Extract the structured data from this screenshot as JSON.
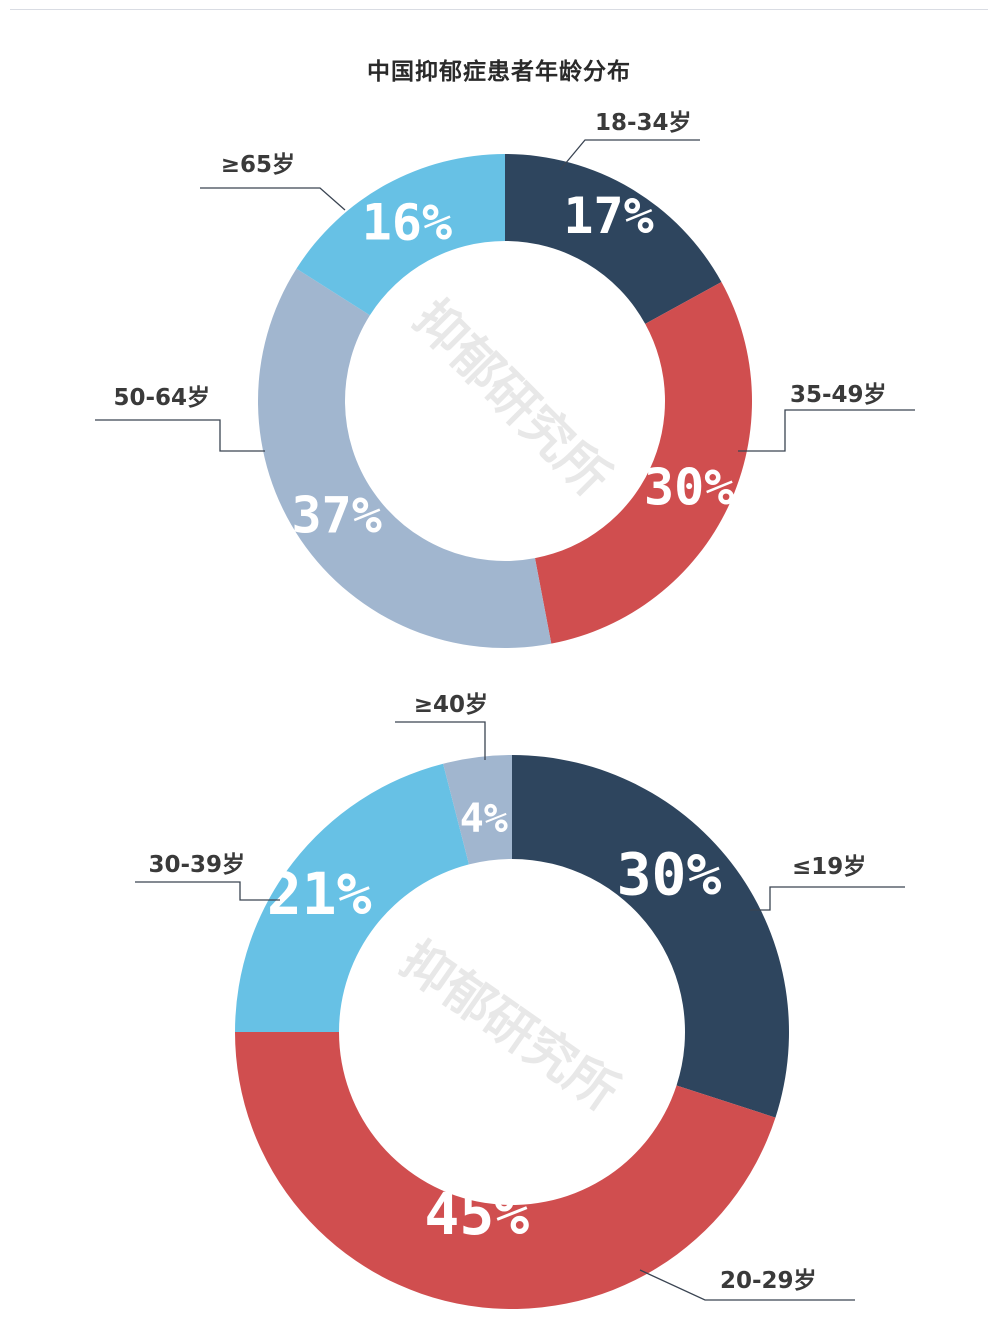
{
  "chart_data": [
    {
      "type": "donut",
      "title": "中国抑郁症患者年龄分布",
      "unit": "%",
      "watermark": "抑郁研究所",
      "categories": [
        "18-34岁",
        "35-49岁",
        "50-64岁",
        "≥65岁"
      ],
      "values": [
        17,
        30,
        37,
        16
      ],
      "value_labels": [
        "17%",
        "30%",
        "37%",
        "16%"
      ],
      "colors": [
        "#2e455e",
        "#d04e4f",
        "#a1b6cf",
        "#67c1e5"
      ]
    },
    {
      "type": "donut",
      "title": "",
      "unit": "%",
      "watermark": "抑郁研究所",
      "categories": [
        "≤19岁",
        "20-29岁",
        "30-39岁",
        "≥40岁"
      ],
      "values": [
        30,
        45,
        21,
        4
      ],
      "value_labels": [
        "30%",
        "45%",
        "21%",
        "4%"
      ],
      "colors": [
        "#2e455e",
        "#d04e4f",
        "#67c1e5",
        "#a1b6cf"
      ]
    }
  ]
}
